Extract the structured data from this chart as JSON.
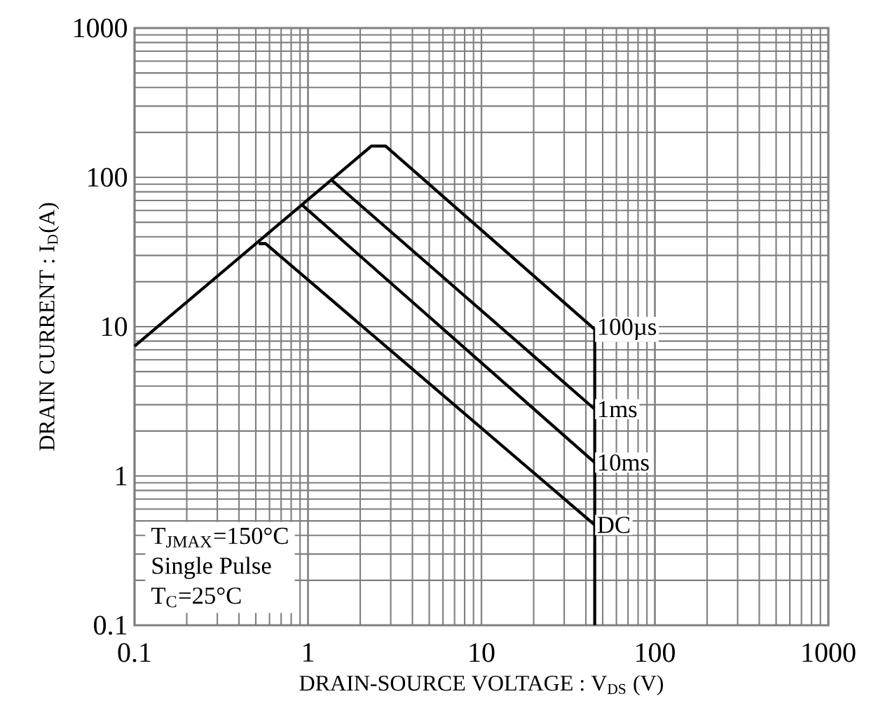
{
  "chart_data": {
    "type": "line",
    "xlabel": "DRAIN-SOURCE VOLTAGE : V$_{DS}$ (V)",
    "ylabel": "DRAIN CURRENT : I$_{D}$(A)",
    "log": "xy",
    "grid": true,
    "legend": false,
    "marker": "none",
    "line_style": "solid",
    "xlim": [
      0.1,
      1000
    ],
    "ylim": [
      0.1,
      1000
    ],
    "xticks": [
      0.1,
      1,
      10,
      100,
      1000
    ],
    "yticks": [
      0.1,
      1,
      10,
      100,
      1000
    ],
    "series": [
      {
        "name": "100µs",
        "color": "#000000",
        "x": [
          0.1,
          2.32,
          2.8,
          45,
          45
        ],
        "values": [
          7.4,
          162,
          162,
          9.6,
          0.1
        ]
      },
      {
        "name": "1ms",
        "color": "#000000",
        "x": [
          1.38,
          45
        ],
        "values": [
          95,
          2.8
        ]
      },
      {
        "name": "10ms",
        "color": "#000000",
        "x": [
          0.93,
          45
        ],
        "values": [
          65,
          1.23
        ]
      },
      {
        "name": "DC",
        "color": "#000000",
        "x": [
          0.52,
          0.57,
          45
        ],
        "values": [
          36,
          36,
          0.47
        ]
      }
    ],
    "annotations": [
      "T$_{JMAX}$=150°C",
      "Single Pulse",
      "T$_{C}$=25°C"
    ]
  }
}
